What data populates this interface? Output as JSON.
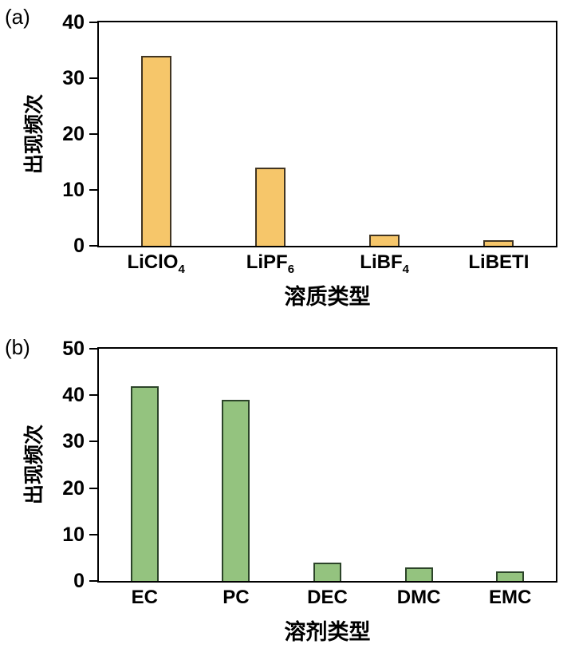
{
  "figure": {
    "background": "#ffffff"
  },
  "chart_data": [
    {
      "type": "bar",
      "panel_label": "(a)",
      "title": "",
      "categories": [
        {
          "text": "LiClO",
          "sub": "4"
        },
        {
          "text": "LiPF",
          "sub": "6"
        },
        {
          "text": "LiBF",
          "sub": "4"
        },
        {
          "text": "LiBETI",
          "sub": ""
        }
      ],
      "values": [
        34,
        14,
        2,
        1
      ],
      "xlabel": "溶质类型",
      "ylabel": "出现频次",
      "ylim": [
        0,
        40
      ],
      "yticks": [
        0,
        10,
        20,
        30,
        40
      ],
      "grid": false,
      "legend": null,
      "bar_color": "#f6c66a",
      "bar_border_color": "#413522"
    },
    {
      "type": "bar",
      "panel_label": "(b)",
      "title": "",
      "categories": [
        {
          "text": "EC",
          "sub": ""
        },
        {
          "text": "PC",
          "sub": ""
        },
        {
          "text": "DEC",
          "sub": ""
        },
        {
          "text": "DMC",
          "sub": ""
        },
        {
          "text": "EMC",
          "sub": ""
        }
      ],
      "values": [
        42,
        39,
        4,
        3,
        2
      ],
      "xlabel": "溶剂类型",
      "ylabel": "出现频次",
      "ylim": [
        0,
        50
      ],
      "yticks": [
        0,
        10,
        20,
        30,
        40,
        50
      ],
      "grid": false,
      "legend": null,
      "bar_color": "#94c37f",
      "bar_border_color": "#2c4429"
    }
  ]
}
